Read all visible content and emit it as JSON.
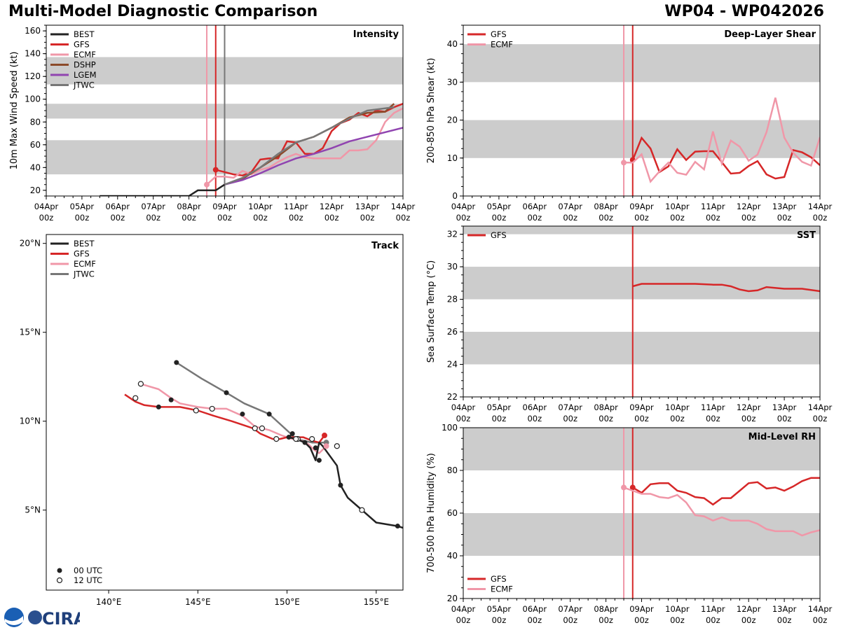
{
  "header": {
    "title": "Multi-Model Diagnostic Comparison",
    "storm_id": "WP04 - WP042026"
  },
  "colors": {
    "BEST": "#222222",
    "GFS": "#d62728",
    "ECMF": "#f097a8",
    "DSHP": "#8c4a2a",
    "LGEM": "#9044b0",
    "JTWC": "#777777",
    "shade": "#cccccc"
  },
  "logo_text": "CIRA",
  "time_axis": {
    "day_labels": [
      "04Apr",
      "05Apr",
      "06Apr",
      "07Apr",
      "08Apr",
      "09Apr",
      "10Apr",
      "11Apr",
      "12Apr",
      "13Apr",
      "14Apr"
    ],
    "hour_label": "00z"
  },
  "chart_data": [
    {
      "id": "intensity",
      "type": "line",
      "title": "Intensity",
      "ylabel": "10m Max Wind Speed (kt)",
      "xlim": [
        0,
        10
      ],
      "ylim": [
        15,
        165
      ],
      "yticks": [
        20,
        40,
        60,
        80,
        100,
        120,
        140,
        160
      ],
      "shaded_bands": [
        [
          34,
          64
        ],
        [
          83,
          96
        ],
        [
          113,
          137
        ]
      ],
      "vlines": [
        {
          "series": "ECMF",
          "x": 4.5
        },
        {
          "series": "GFS",
          "x": 4.75
        },
        {
          "series": "JTWC",
          "x": 5.0
        }
      ],
      "legend": [
        "BEST",
        "GFS",
        "ECMF",
        "DSHP",
        "LGEM",
        "JTWC"
      ],
      "series": [
        {
          "name": "BEST",
          "x": [
            1.5,
            4.0,
            4.25,
            4.75,
            5.0
          ],
          "y": [
            15,
            15,
            20,
            20,
            25
          ],
          "start_dot": false
        },
        {
          "name": "GFS",
          "x": [
            4.75,
            5.0,
            5.25,
            5.5,
            5.75,
            6.0,
            6.25,
            6.5,
            6.75,
            7.0,
            7.25,
            7.5,
            7.75,
            8.0,
            8.25,
            8.5,
            8.75,
            9.0,
            9.25,
            9.5,
            9.75,
            10.0
          ],
          "y": [
            38,
            36,
            34,
            33,
            36,
            47,
            48,
            48,
            63,
            62,
            52,
            52,
            57,
            72,
            79,
            82,
            88,
            85,
            90,
            89,
            93,
            96
          ],
          "start_dot": true
        },
        {
          "name": "ECMF",
          "x": [
            4.5,
            4.75,
            5.0,
            5.25,
            5.5,
            5.75,
            6.0,
            6.25,
            6.5,
            6.75,
            7.0,
            7.25,
            7.5,
            7.75,
            8.0,
            8.25,
            8.5,
            8.75,
            9.0,
            9.25,
            9.5,
            9.75,
            10.0
          ],
          "y": [
            25,
            32,
            32,
            31,
            37,
            34,
            38,
            40,
            45,
            49,
            52,
            49,
            48,
            48,
            48,
            48,
            55,
            55,
            56,
            64,
            80,
            88,
            92
          ],
          "start_dot": true
        },
        {
          "name": "DSHP",
          "x": [
            5.0,
            5.5,
            6.0,
            6.5,
            7.0,
            7.5,
            8.0,
            8.5,
            9.0,
            9.5,
            9.75
          ],
          "y": [
            25,
            30,
            40,
            50,
            62,
            67,
            75,
            84,
            88,
            89,
            96
          ],
          "start_dot": false
        },
        {
          "name": "LGEM",
          "x": [
            5.0,
            5.5,
            6.0,
            6.5,
            7.0,
            7.5,
            8.0,
            8.5,
            9.0,
            9.5,
            10.0
          ],
          "y": [
            25,
            29,
            35,
            42,
            48,
            52,
            57,
            63,
            67,
            71,
            75
          ],
          "start_dot": false
        },
        {
          "name": "JTWC",
          "x": [
            5.0,
            5.5,
            6.0,
            6.5,
            7.0,
            7.5,
            8.0,
            8.5,
            9.0,
            9.5,
            9.75
          ],
          "y": [
            25,
            31,
            40,
            52,
            62,
            67,
            75,
            83,
            90,
            92,
            93
          ],
          "start_dot": false
        }
      ]
    },
    {
      "id": "shear",
      "type": "line",
      "title": "Deep-Layer Shear",
      "ylabel": "200-850 hPa Shear (kt)",
      "xlim": [
        0,
        10
      ],
      "ylim": [
        0,
        45
      ],
      "yticks": [
        0,
        10,
        20,
        30,
        40
      ],
      "shaded_bands": [
        [
          10,
          20
        ],
        [
          30,
          40
        ]
      ],
      "vlines": [
        {
          "series": "ECMF",
          "x": 4.5
        },
        {
          "series": "GFS",
          "x": 4.75
        }
      ],
      "legend": [
        "GFS",
        "ECMF"
      ],
      "series": [
        {
          "name": "GFS",
          "x": [
            4.75,
            5.0,
            5.25,
            5.5,
            5.75,
            6.0,
            6.25,
            6.5,
            6.75,
            7.0,
            7.25,
            7.5,
            7.75,
            8.0,
            8.25,
            8.5,
            8.75,
            9.0,
            9.25,
            9.5,
            9.75,
            10.0
          ],
          "y": [
            9.5,
            15.3,
            12.5,
            6.3,
            7.8,
            12.3,
            9.5,
            11.7,
            11.8,
            11.8,
            8.9,
            5.9,
            6.1,
            7.9,
            9.2,
            5.7,
            4.6,
            5.0,
            12.1,
            11.5,
            10.2,
            8.1
          ],
          "start_dot": true
        },
        {
          "name": "ECMF",
          "x": [
            4.5,
            4.75,
            5.0,
            5.25,
            5.5,
            5.75,
            6.0,
            6.25,
            6.5,
            6.75,
            7.0,
            7.25,
            7.5,
            7.75,
            8.0,
            8.25,
            8.5,
            8.75,
            9.0,
            9.25,
            9.5,
            9.75,
            10.0
          ],
          "y": [
            8.8,
            8.8,
            11.0,
            3.8,
            6.5,
            8.8,
            6.1,
            5.6,
            9.0,
            7.0,
            17.0,
            8.5,
            14.6,
            13.0,
            9.3,
            10.9,
            16.8,
            25.9,
            15.4,
            11.4,
            9.0,
            8.0,
            15.5
          ],
          "start_dot": true
        }
      ]
    },
    {
      "id": "sst",
      "type": "line",
      "title": "SST",
      "ylabel": "Sea Surface Temp (°C)",
      "xlim": [
        0,
        10
      ],
      "ylim": [
        22,
        32.5
      ],
      "yticks": [
        22,
        24,
        26,
        28,
        30,
        32
      ],
      "shaded_bands": [
        [
          24,
          26
        ],
        [
          28,
          30
        ],
        [
          32,
          34
        ]
      ],
      "vlines": [
        {
          "series": "GFS",
          "x": 4.75
        }
      ],
      "legend": [
        "GFS"
      ],
      "series": [
        {
          "name": "GFS",
          "x": [
            4.75,
            5.0,
            5.5,
            6.0,
            6.5,
            7.0,
            7.25,
            7.5,
            7.75,
            8.0,
            8.25,
            8.5,
            9.0,
            9.5,
            10.0
          ],
          "y": [
            28.8,
            28.95,
            28.95,
            28.95,
            28.95,
            28.9,
            28.9,
            28.8,
            28.6,
            28.5,
            28.55,
            28.75,
            28.65,
            28.65,
            28.5
          ],
          "start_dot": false
        }
      ]
    },
    {
      "id": "rh",
      "type": "line",
      "title": "Mid-Level RH",
      "ylabel": "700-500 hPa Humidity (%)",
      "xlim": [
        0,
        10
      ],
      "ylim": [
        20,
        100
      ],
      "yticks": [
        20,
        40,
        60,
        80,
        100
      ],
      "shaded_bands": [
        [
          40,
          60
        ],
        [
          80,
          100
        ]
      ],
      "vlines": [
        {
          "series": "ECMF",
          "x": 4.5
        },
        {
          "series": "GFS",
          "x": 4.75
        }
      ],
      "legend": [
        "GFS",
        "ECMF"
      ],
      "series": [
        {
          "name": "GFS",
          "x": [
            4.75,
            5.0,
            5.25,
            5.5,
            5.75,
            6.0,
            6.25,
            6.5,
            6.75,
            7.0,
            7.25,
            7.5,
            7.75,
            8.0,
            8.25,
            8.5,
            8.75,
            9.0,
            9.25,
            9.5,
            9.75,
            10.0
          ],
          "y": [
            72,
            69.5,
            73.5,
            74,
            74,
            70.5,
            69.5,
            67.5,
            67,
            64,
            67,
            67,
            70.5,
            74,
            74.5,
            71.5,
            72,
            70.5,
            72.5,
            75,
            76.5,
            76.5
          ],
          "start_dot": true
        },
        {
          "name": "ECMF",
          "x": [
            4.5,
            4.75,
            5.0,
            5.25,
            5.5,
            5.75,
            6.0,
            6.25,
            6.5,
            6.75,
            7.0,
            7.25,
            7.5,
            7.75,
            8.0,
            8.25,
            8.5,
            8.75,
            9.0,
            9.25,
            9.5,
            9.75,
            10.0
          ],
          "y": [
            72,
            70.5,
            69,
            69,
            67.5,
            67,
            68.5,
            65,
            59,
            58.5,
            56.5,
            58,
            56.5,
            56.5,
            56.5,
            55,
            52.5,
            51.5,
            51.5,
            51.5,
            49.5,
            51,
            52
          ],
          "start_dot": true
        }
      ]
    },
    {
      "id": "track",
      "type": "scatter",
      "title": "Track",
      "xlim": [
        136.5,
        156.5
      ],
      "ylim": [
        0.5,
        20.5
      ],
      "xticks": [
        140,
        145,
        150,
        155
      ],
      "xtick_labels": [
        "140°E",
        "145°E",
        "150°E",
        "155°E"
      ],
      "yticks": [
        5,
        10,
        15,
        20
      ],
      "ytick_labels": [
        "5°N",
        "10°N",
        "15°N",
        "20°N"
      ],
      "legend": [
        "BEST",
        "GFS",
        "ECMF",
        "JTWC"
      ],
      "marker_legend": [
        "00 UTC",
        "12 UTC"
      ],
      "series": [
        {
          "name": "BEST",
          "lon": [
            156.5,
            156.2,
            155.0,
            154.2,
            153.4,
            153.0,
            152.8,
            152.0,
            151.8,
            151.6,
            151.3,
            151.0,
            150.5,
            150.1,
            150.3
          ],
          "lat": [
            4.0,
            4.1,
            4.3,
            5.0,
            5.7,
            6.4,
            7.5,
            8.6,
            8.8,
            7.8,
            8.5,
            8.8,
            9.0,
            9.1,
            9.3
          ],
          "markers": [
            [
              156.2,
              4.1,
              "00"
            ],
            [
              154.2,
              5.0,
              "12"
            ],
            [
              153.0,
              6.4,
              "00"
            ],
            [
              152.8,
              8.6,
              "12"
            ],
            [
              151.8,
              7.8,
              "00"
            ],
            [
              151.6,
              8.5,
              "00"
            ],
            [
              151.0,
              8.8,
              "00"
            ],
            [
              150.5,
              9.0,
              "12"
            ],
            [
              150.1,
              9.1,
              "00"
            ],
            [
              150.3,
              9.3,
              "00"
            ]
          ]
        },
        {
          "name": "GFS",
          "lon": [
            152.1,
            151.8,
            151.4,
            150.9,
            150.6,
            150.0,
            149.6,
            149.2,
            148.5,
            148.1,
            147.5,
            146.9,
            145.9,
            145.0,
            144.0,
            143.3,
            142.8,
            142.0,
            141.5,
            140.9
          ],
          "lat": [
            9.2,
            8.8,
            8.9,
            9.1,
            9.1,
            9.1,
            9.0,
            9.0,
            9.3,
            9.6,
            9.8,
            10.0,
            10.3,
            10.6,
            10.8,
            10.8,
            10.8,
            10.9,
            11.1,
            11.5
          ],
          "markers": [
            [
              152.1,
              9.2,
              "start"
            ]
          ]
        },
        {
          "name": "ECMF",
          "lon": [
            152.2,
            151.8,
            151.5,
            151.2,
            150.8,
            150.3,
            149.7,
            149.0,
            148.2,
            147.5,
            146.6,
            145.8,
            145.0,
            144.0,
            143.5,
            142.8,
            141.8
          ],
          "lat": [
            8.6,
            8.2,
            8.4,
            8.7,
            8.9,
            9.0,
            9.2,
            9.5,
            9.7,
            10.3,
            10.7,
            10.7,
            10.8,
            11.0,
            11.3,
            11.8,
            12.1
          ],
          "markers": [
            [
              152.2,
              8.6,
              "start"
            ],
            [
              149.4,
              9.0,
              "12"
            ],
            [
              148.6,
              9.6,
              "12"
            ],
            [
              148.2,
              9.6,
              "12"
            ],
            [
              145.8,
              10.7,
              "12"
            ],
            [
              144.9,
              10.6,
              "12"
            ],
            [
              141.8,
              12.1,
              "12"
            ],
            [
              141.5,
              11.3,
              "12"
            ]
          ]
        },
        {
          "name": "JTWC",
          "lon": [
            152.2,
            151.4,
            150.5,
            150.2,
            149.0,
            147.6,
            146.6,
            145.2,
            143.8
          ],
          "lat": [
            8.8,
            8.8,
            9.0,
            9.3,
            10.4,
            11.0,
            11.6,
            12.4,
            13.3
          ],
          "markers": [
            [
              149.0,
              10.4,
              "00"
            ],
            [
              147.5,
              10.4,
              "00"
            ],
            [
              146.6,
              11.6,
              "00"
            ],
            [
              143.5,
              11.2,
              "00"
            ],
            [
              142.8,
              10.8,
              "00"
            ],
            [
              143.8,
              13.3,
              "00"
            ],
            [
              152.2,
              8.8,
              "start"
            ],
            [
              151.4,
              9.0,
              "12"
            ],
            [
              150.6,
              9.0,
              "12"
            ]
          ]
        }
      ]
    }
  ]
}
